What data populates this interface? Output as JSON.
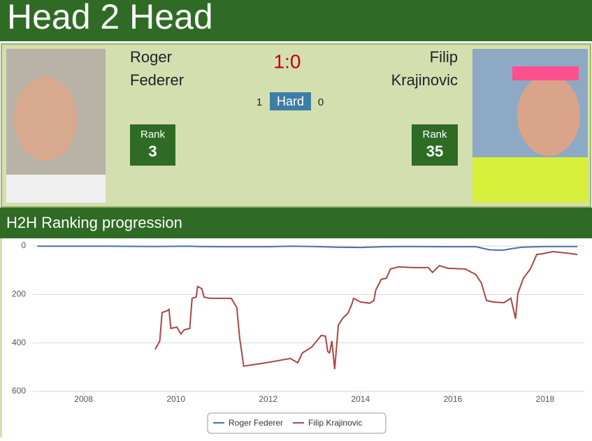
{
  "header": {
    "title": "Head 2 Head"
  },
  "match": {
    "score": "1:0",
    "surface": "Hard"
  },
  "players": [
    {
      "first_name": "Roger",
      "last_name": "Federer",
      "wins": 1,
      "rank_label": "Rank",
      "rank": 3
    },
    {
      "first_name": "Filip",
      "last_name": "Krajinovic",
      "wins": 0,
      "rank_label": "Rank",
      "rank": 35
    }
  ],
  "chart_data": {
    "type": "line",
    "title": "H2H Ranking progression",
    "xlim": [
      2006.9,
      2018.85
    ],
    "xticks": [
      2008,
      2010,
      2012,
      2014,
      2016,
      2018
    ],
    "ylim": [
      0,
      600
    ],
    "y_reversed": true,
    "yticks": [
      0,
      200,
      400,
      600
    ],
    "grid": true,
    "legend": "bottom",
    "series": [
      {
        "name": "Roger Federer",
        "color": "#4572a7",
        "x": [
          2007,
          2008.5,
          2009.5,
          2010.3,
          2010.5,
          2011,
          2012,
          2012.5,
          2013,
          2013.5,
          2014,
          2014.5,
          2015,
          2016,
          2016.5,
          2016.8,
          2017,
          2017.1,
          2017.3,
          2017.5,
          2018,
          2018.7
        ],
        "values": [
          1,
          1,
          2,
          1,
          2,
          3,
          3,
          1,
          2,
          5,
          6,
          3,
          2,
          3,
          3,
          16,
          17,
          17,
          10,
          5,
          2,
          2
        ]
      },
      {
        "name": "Filip Krajinovic",
        "color": "#aa4643",
        "x": [
          2009.55,
          2009.65,
          2009.7,
          2009.8,
          2009.85,
          2009.89,
          2010.02,
          2010.11,
          2010.18,
          2010.3,
          2010.35,
          2010.44,
          2010.47,
          2010.56,
          2010.61,
          2010.74,
          2011.05,
          2011.2,
          2011.32,
          2011.38,
          2011.47,
          2011.95,
          2012.48,
          2012.64,
          2012.74,
          2012.94,
          2013.15,
          2013.24,
          2013.29,
          2013.33,
          2013.38,
          2013.44,
          2013.47,
          2013.52,
          2013.62,
          2013.73,
          2013.82,
          2013.85,
          2014.0,
          2014.2,
          2014.29,
          2014.33,
          2014.45,
          2014.56,
          2014.65,
          2014.83,
          2015.14,
          2015.47,
          2015.56,
          2015.71,
          2015.89,
          2016.27,
          2016.5,
          2016.62,
          2016.73,
          2016.88,
          2017.11,
          2017.26,
          2017.36,
          2017.41,
          2017.53,
          2017.68,
          2017.82,
          2017.94,
          2018.17,
          2018.47,
          2018.7
        ],
        "values": [
          427,
          392,
          274,
          268,
          262,
          340,
          335,
          363,
          346,
          340,
          216,
          211,
          167,
          176,
          211,
          216,
          216,
          216,
          254,
          378,
          496,
          482,
          464,
          482,
          441,
          418,
          369,
          372,
          436,
          441,
          392,
          508,
          441,
          326,
          297,
          277,
          236,
          216,
          231,
          236,
          225,
          182,
          138,
          133,
          95,
          86,
          89,
          89,
          109,
          81,
          92,
          95,
          118,
          153,
          225,
          231,
          234,
          216,
          300,
          196,
          133,
          95,
          35,
          32,
          23,
          29,
          35
        ]
      }
    ]
  }
}
